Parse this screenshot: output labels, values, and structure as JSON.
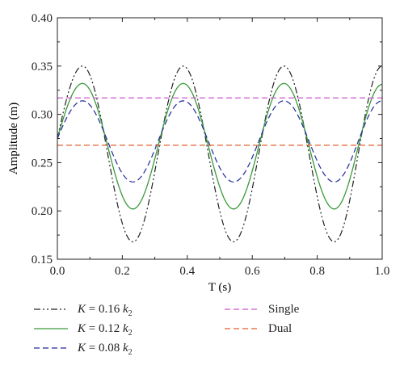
{
  "chart_data": {
    "type": "line",
    "xlabel": "T (s)",
    "ylabel": "Amplitude (m)",
    "xlim": [
      0.0,
      1.0
    ],
    "ylim": [
      0.15,
      0.4
    ],
    "xticks": [
      "0.0",
      "0.2",
      "0.4",
      "0.6",
      "0.8",
      "1.0"
    ],
    "yticks": [
      "0.15",
      "0.20",
      "0.25",
      "0.30",
      "0.35",
      "0.40"
    ],
    "grid": false,
    "legend_position": "bottom",
    "series": [
      {
        "name_prefix": "K = 0.16 k",
        "name_sub": "2",
        "style": "dash-dot-dot",
        "color": "#222222",
        "x": [
          0.0,
          0.0775,
          0.2325,
          0.3875,
          0.5425,
          0.6975,
          0.8525,
          1.0
        ],
        "y": [
          0.275,
          0.35,
          0.168,
          0.35,
          0.168,
          0.35,
          0.168,
          0.35
        ]
      },
      {
        "name_prefix": "K = 0.12 k",
        "name_sub": "2",
        "style": "solid",
        "color": "#3a9a3a",
        "x": [
          0.0,
          0.0775,
          0.2325,
          0.3875,
          0.5425,
          0.6975,
          0.8525,
          1.0
        ],
        "y": [
          0.275,
          0.332,
          0.202,
          0.332,
          0.202,
          0.332,
          0.202,
          0.331
        ]
      },
      {
        "name_prefix": "K = 0.08 k",
        "name_sub": "2",
        "style": "dashed",
        "color": "#1f2a99",
        "x": [
          0.0,
          0.0775,
          0.2325,
          0.3875,
          0.5425,
          0.6975,
          0.8525,
          1.0
        ],
        "y": [
          0.275,
          0.314,
          0.23,
          0.314,
          0.23,
          0.314,
          0.23,
          0.314
        ]
      },
      {
        "name": "Single",
        "style": "dashed",
        "color": "#cc55cc",
        "x": [
          0.0,
          1.0
        ],
        "y": [
          0.317,
          0.317
        ]
      },
      {
        "name": "Dual",
        "style": "dashed",
        "color": "#e0602a",
        "x": [
          0.0,
          1.0
        ],
        "y": [
          0.268,
          0.268
        ]
      }
    ]
  }
}
